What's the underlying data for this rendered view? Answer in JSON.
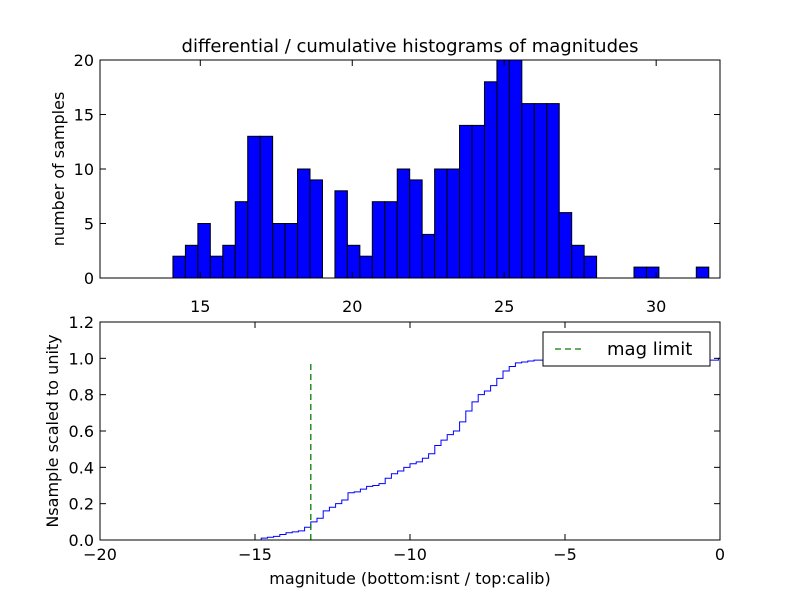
{
  "chart_data": [
    {
      "type": "bar",
      "title": "differential / cumulative histograms of magnitudes",
      "ylabel": "number of samples",
      "xlabel": "",
      "xlim": [
        11.7,
        32.1
      ],
      "ylim": [
        0,
        20
      ],
      "xticks": [
        15,
        20,
        25,
        30
      ],
      "yticks": [
        0,
        5,
        10,
        15,
        20
      ],
      "bar_width": 0.41,
      "bar_color": "#0000ff",
      "bars": [
        {
          "x": 14.1,
          "y": 2
        },
        {
          "x": 14.51,
          "y": 3
        },
        {
          "x": 14.92,
          "y": 5
        },
        {
          "x": 15.33,
          "y": 2
        },
        {
          "x": 15.74,
          "y": 3
        },
        {
          "x": 16.15,
          "y": 7
        },
        {
          "x": 16.56,
          "y": 13
        },
        {
          "x": 16.97,
          "y": 13
        },
        {
          "x": 17.38,
          "y": 5
        },
        {
          "x": 17.79,
          "y": 5
        },
        {
          "x": 18.2,
          "y": 10
        },
        {
          "x": 18.61,
          "y": 9
        },
        {
          "x": 19.43,
          "y": 8
        },
        {
          "x": 19.84,
          "y": 3
        },
        {
          "x": 20.25,
          "y": 2
        },
        {
          "x": 20.66,
          "y": 7
        },
        {
          "x": 21.07,
          "y": 7
        },
        {
          "x": 21.48,
          "y": 10
        },
        {
          "x": 21.89,
          "y": 9
        },
        {
          "x": 22.3,
          "y": 4
        },
        {
          "x": 22.71,
          "y": 10
        },
        {
          "x": 23.12,
          "y": 10
        },
        {
          "x": 23.53,
          "y": 14
        },
        {
          "x": 23.94,
          "y": 14
        },
        {
          "x": 24.35,
          "y": 18
        },
        {
          "x": 24.76,
          "y": 20
        },
        {
          "x": 25.17,
          "y": 20
        },
        {
          "x": 25.58,
          "y": 16
        },
        {
          "x": 25.99,
          "y": 16
        },
        {
          "x": 26.4,
          "y": 16
        },
        {
          "x": 26.81,
          "y": 6
        },
        {
          "x": 27.22,
          "y": 3
        },
        {
          "x": 27.63,
          "y": 2
        },
        {
          "x": 29.27,
          "y": 1
        },
        {
          "x": 29.68,
          "y": 1
        },
        {
          "x": 31.32,
          "y": 1
        }
      ]
    },
    {
      "type": "line",
      "xlabel": "magnitude (bottom:isnt / top:calib)",
      "ylabel": "Nsample scaled to unity",
      "xlim": [
        -20,
        0
      ],
      "ylim": [
        0,
        1.2
      ],
      "xticks": [
        -20,
        -15,
        -10,
        -5,
        0
      ],
      "yticks": [
        0.0,
        0.2,
        0.4,
        0.6,
        0.8,
        1.0,
        1.2
      ],
      "ytick_labels": [
        "0.0",
        "0.2",
        "0.4",
        "0.6",
        "0.8",
        "1.0",
        "1.2"
      ],
      "xtick_labels": [
        "−20",
        "−15",
        "−10",
        "−5",
        "0"
      ],
      "series": [
        {
          "name": "",
          "color": "#0000ff",
          "style": "step",
          "x": [
            -20,
            -15.0,
            -14.8,
            -14.6,
            -14.4,
            -14.2,
            -14.0,
            -13.8,
            -13.6,
            -13.4,
            -13.2,
            -13.0,
            -12.8,
            -12.6,
            -12.4,
            -12.2,
            -12.0,
            -11.8,
            -11.6,
            -11.4,
            -11.2,
            -11.0,
            -10.8,
            -10.6,
            -10.4,
            -10.2,
            -10.0,
            -9.8,
            -9.6,
            -9.4,
            -9.2,
            -9.0,
            -8.8,
            -8.6,
            -8.4,
            -8.2,
            -8.0,
            -7.8,
            -7.6,
            -7.4,
            -7.2,
            -7.0,
            -6.8,
            -6.6,
            -6.4,
            -6.2,
            -6.0,
            -5.8,
            -0.05,
            0
          ],
          "y": [
            0.0,
            0.0,
            0.01,
            0.015,
            0.02,
            0.03,
            0.04,
            0.045,
            0.05,
            0.07,
            0.1,
            0.12,
            0.16,
            0.18,
            0.2,
            0.22,
            0.26,
            0.265,
            0.28,
            0.295,
            0.3,
            0.31,
            0.34,
            0.365,
            0.38,
            0.4,
            0.42,
            0.43,
            0.45,
            0.475,
            0.52,
            0.55,
            0.58,
            0.6,
            0.65,
            0.71,
            0.76,
            0.8,
            0.82,
            0.85,
            0.89,
            0.93,
            0.955,
            0.975,
            0.98,
            0.985,
            0.99,
            0.99,
            1.0,
            1.0
          ]
        }
      ],
      "mag_limit": {
        "x": -13.2,
        "y0": 0.0,
        "y1": 0.97,
        "color": "#008000"
      },
      "legend": {
        "entries": [
          {
            "label": "mag limit",
            "color": "#008000",
            "style": "dashed"
          }
        ],
        "placement": "top-right"
      }
    }
  ]
}
